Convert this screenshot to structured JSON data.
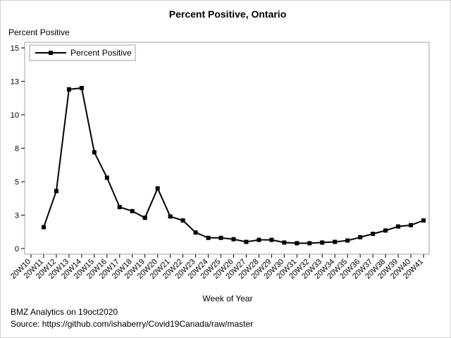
{
  "chart_data": {
    "type": "line",
    "title": "Percent Positive, Ontario",
    "ylabel": "Percent Positive",
    "xlabel": "Week of Year",
    "ylim": [
      0,
      15
    ],
    "yticks": [
      "0",
      "3",
      "5",
      "8",
      "10",
      "13",
      "15"
    ],
    "ytick_values": [
      0,
      2.5,
      5,
      7.5,
      10,
      12.5,
      15
    ],
    "categories": [
      "20W10",
      "20W11",
      "20W12",
      "20W13",
      "20W14",
      "20W15",
      "20W16",
      "20W17",
      "20W18",
      "20W19",
      "20W20",
      "20W21",
      "20W22",
      "20W23",
      "20W24",
      "20W25",
      "20W26",
      "20W27",
      "20W28",
      "20W29",
      "20W30",
      "20W31",
      "20W32",
      "20W33",
      "20W34",
      "20W35",
      "20W36",
      "20W37",
      "20W38",
      "20W39",
      "20W40",
      "20W41"
    ],
    "series": [
      {
        "name": "Percent Positive",
        "color": "#000000",
        "marker": "square",
        "values": [
          null,
          1.6,
          4.3,
          11.9,
          12.0,
          7.2,
          5.3,
          3.1,
          2.8,
          2.3,
          4.5,
          2.4,
          2.1,
          1.2,
          0.8,
          0.8,
          0.7,
          0.5,
          0.65,
          0.65,
          0.45,
          0.4,
          0.4,
          0.45,
          0.5,
          0.6,
          0.85,
          1.1,
          1.35,
          1.65,
          1.75,
          2.1
        ]
      }
    ],
    "legend": "top-left",
    "grid": false
  },
  "footer": {
    "line1": "BMZ Analytics on 19oct2020",
    "line2": "Source: https://github.com/ishaberry/Covid19Canada/raw/master"
  }
}
